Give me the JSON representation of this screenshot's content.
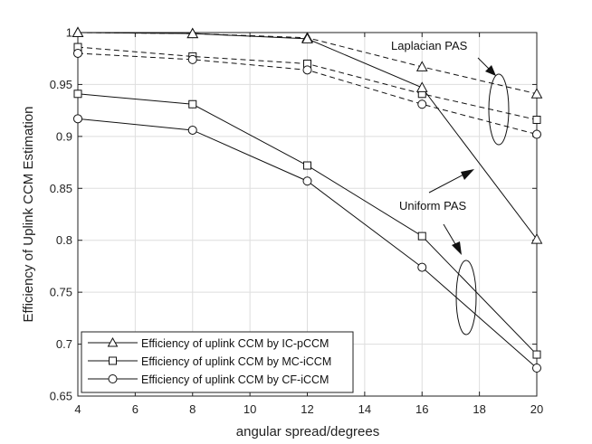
{
  "chart_data": {
    "type": "line",
    "title": "",
    "xlabel": "angular spread/degrees",
    "ylabel": "Efficiency of Uplink CCM Estimation",
    "xlim": [
      4,
      20
    ],
    "ylim": [
      0.65,
      1
    ],
    "xticks": [
      4,
      6,
      8,
      10,
      12,
      14,
      16,
      18,
      20
    ],
    "xtick_labels": [
      "4",
      "6",
      "8",
      "10",
      "12",
      "14",
      "16",
      "18",
      "20"
    ],
    "yticks": [
      0.65,
      0.7,
      0.75,
      0.8,
      0.85,
      0.9,
      0.95,
      1
    ],
    "ytick_labels": [
      "0.65",
      "0.7",
      "0.75",
      "0.8",
      "0.85",
      "0.9",
      "0.95",
      "1"
    ],
    "grid": true,
    "legend_position": "bottom-left",
    "legend": [
      {
        "label": "Efficiency of uplink CCM by IC-pCCM",
        "marker": "triangle"
      },
      {
        "label": "Efficiency of uplink CCM by MC-iCCM",
        "marker": "square"
      },
      {
        "label": "Efficiency of uplink CCM by CF-iCCM",
        "marker": "circle"
      }
    ],
    "series": [
      {
        "pas": "Laplacian",
        "marker": "triangle",
        "style": "dashed",
        "x": [
          4,
          8,
          12,
          16,
          20
        ],
        "values": [
          1.0,
          0.999,
          0.995,
          0.967,
          0.941
        ]
      },
      {
        "pas": "Laplacian",
        "marker": "square",
        "style": "dashed",
        "x": [
          4,
          8,
          12,
          16,
          20
        ],
        "values": [
          0.986,
          0.977,
          0.97,
          0.941,
          0.916
        ]
      },
      {
        "pas": "Laplacian",
        "marker": "circle",
        "style": "dashed",
        "x": [
          4,
          8,
          12,
          16,
          20
        ],
        "values": [
          0.98,
          0.974,
          0.964,
          0.931,
          0.902
        ]
      },
      {
        "pas": "Uniform",
        "marker": "triangle",
        "style": "solid",
        "x": [
          4,
          8,
          12,
          16,
          20
        ],
        "values": [
          1.0,
          0.999,
          0.994,
          0.947,
          0.801
        ]
      },
      {
        "pas": "Uniform",
        "marker": "square",
        "style": "solid",
        "x": [
          4,
          8,
          12,
          16,
          20
        ],
        "values": [
          0.941,
          0.931,
          0.872,
          0.804,
          0.69
        ]
      },
      {
        "pas": "Uniform",
        "marker": "circle",
        "style": "solid",
        "x": [
          4,
          8,
          12,
          16,
          20
        ],
        "values": [
          0.917,
          0.906,
          0.857,
          0.774,
          0.677
        ]
      }
    ],
    "annotations": [
      {
        "text": "Laplacian PAS"
      },
      {
        "text": "Uniform PAS"
      }
    ]
  }
}
